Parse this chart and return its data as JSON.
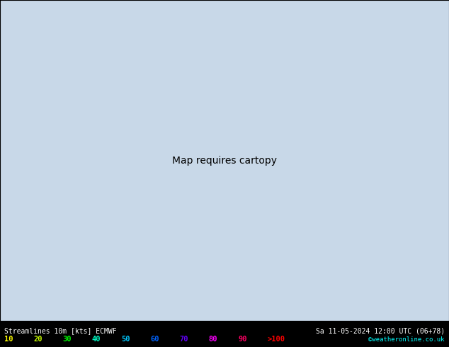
{
  "title_left": "Streamlines 10m [kts] ECMWF",
  "title_right": "Sa 11-05-2024 12:00 UTC (06+78)",
  "credit": "©weatheronline.co.uk",
  "legend_values": [
    "10",
    "20",
    "30",
    "40",
    "50",
    "60",
    "70",
    "80",
    "90",
    ">100"
  ],
  "legend_colors": [
    "#ffff00",
    "#c8ff00",
    "#00ff00",
    "#00ffc8",
    "#00c8ff",
    "#0064ff",
    "#6400ff",
    "#ff00ff",
    "#ff0064",
    "#ff0000"
  ],
  "bg_color": "#e8e8e8",
  "map_bg": "#f0f0f0",
  "figsize": [
    6.34,
    4.9
  ],
  "dpi": 100,
  "bottom_bar_color": "#000000",
  "bottom_text_color": "#ffffff",
  "grid_color": "#aaaaaa",
  "land_color": "#d4e8b0",
  "ocean_color": "#c8d8e8",
  "streamline_color_slow": "#c8c800",
  "streamline_color_fast": "#00c800"
}
